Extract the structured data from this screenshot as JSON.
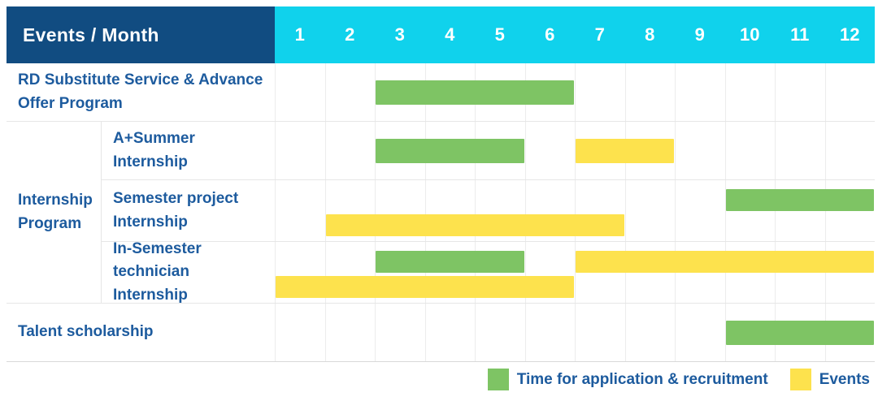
{
  "header": {
    "title": "Events / Month",
    "months": [
      "1",
      "2",
      "3",
      "4",
      "5",
      "6",
      "7",
      "8",
      "9",
      "10",
      "11",
      "12"
    ]
  },
  "legend": {
    "items": [
      {
        "key": "application",
        "label": "Time for application & recruitment",
        "color": "#7ec464"
      },
      {
        "key": "event",
        "label": "Events",
        "color": "#fde24d"
      }
    ]
  },
  "colors": {
    "header_bg": "#114c81",
    "months_header_bg": "#10d2ec",
    "header_text": "#ffffff",
    "label_text": "#1d5b9e",
    "grid_line": "#e6e6e6",
    "application_green": "#7ec464",
    "event_yellow": "#fde24d"
  },
  "chart_data": {
    "type": "gantt",
    "title": "Events / Month",
    "x_label": "Month",
    "x_ticks": [
      1,
      2,
      3,
      4,
      5,
      6,
      7,
      8,
      9,
      10,
      11,
      12
    ],
    "legend": {
      "application": "Time for application & recruitment",
      "event": "Events"
    },
    "tasks": [
      {
        "group": "",
        "name": "RD Substitute Service & Advance Offer Program",
        "lines": 1,
        "bars": [
          {
            "kind": "application",
            "start": 3,
            "end": 6,
            "line": 0
          }
        ]
      },
      {
        "group": "Internship Program",
        "name": "A+Summer Internship",
        "lines": 1,
        "bars": [
          {
            "kind": "application",
            "start": 3,
            "end": 5,
            "line": 0
          },
          {
            "kind": "event",
            "start": 7,
            "end": 8,
            "line": 0
          }
        ]
      },
      {
        "group": "Internship Program",
        "name": "Semester project Internship",
        "lines": 2,
        "bars": [
          {
            "kind": "application",
            "start": 10,
            "end": 12,
            "line": 0
          },
          {
            "kind": "event",
            "start": 2,
            "end": 7,
            "line": 1
          }
        ]
      },
      {
        "group": "Internship Program",
        "name": "In-Semester technician Internship",
        "lines": 2,
        "bars": [
          {
            "kind": "application",
            "start": 3,
            "end": 5,
            "line": 0
          },
          {
            "kind": "event",
            "start": 7,
            "end": 12,
            "line": 0
          },
          {
            "kind": "event",
            "start": 1,
            "end": 6,
            "line": 1
          }
        ]
      },
      {
        "group": "",
        "name": "Talent scholarship",
        "lines": 1,
        "bars": [
          {
            "kind": "application",
            "start": 10,
            "end": 12,
            "line": 0
          }
        ]
      }
    ]
  }
}
